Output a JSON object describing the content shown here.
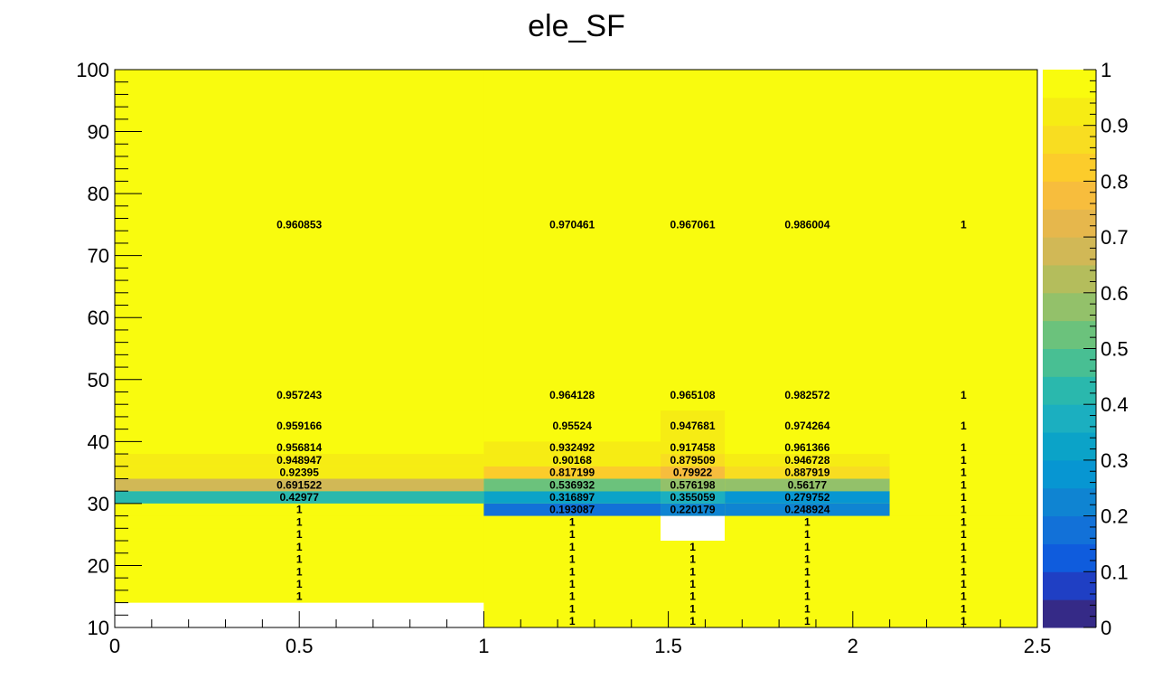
{
  "chart_data": {
    "type": "heatmap",
    "title": "ele_SF",
    "xlabel": "",
    "ylabel": "",
    "xlim": [
      0,
      2.5
    ],
    "ylim": [
      10,
      100
    ],
    "zlim": [
      0,
      1
    ],
    "x_ticks": [
      "0",
      "0.5",
      "1",
      "1.5",
      "2",
      "2.5"
    ],
    "y_ticks": [
      "10",
      "20",
      "30",
      "40",
      "50",
      "60",
      "70",
      "80",
      "90",
      "100"
    ],
    "z_ticks": [
      "0",
      "0.1",
      "0.2",
      "0.3",
      "0.4",
      "0.5",
      "0.6",
      "0.7",
      "0.8",
      "0.9",
      "1"
    ],
    "background_value": 1,
    "x_edges": [
      0,
      1,
      1.479,
      1.653,
      2.1,
      2.5
    ],
    "cells": [
      {
        "ix": 0,
        "y0": 10,
        "y1": 14,
        "value": null,
        "label": ""
      },
      {
        "ix": 0,
        "y0": 14,
        "y1": 16,
        "value": 1,
        "label": "1"
      },
      {
        "ix": 0,
        "y0": 16,
        "y1": 18,
        "value": 1,
        "label": "1"
      },
      {
        "ix": 0,
        "y0": 18,
        "y1": 20,
        "value": 1,
        "label": "1"
      },
      {
        "ix": 0,
        "y0": 20,
        "y1": 22,
        "value": 1,
        "label": "1"
      },
      {
        "ix": 0,
        "y0": 22,
        "y1": 24,
        "value": 1,
        "label": "1"
      },
      {
        "ix": 0,
        "y0": 24,
        "y1": 26,
        "value": 1,
        "label": "1"
      },
      {
        "ix": 0,
        "y0": 26,
        "y1": 28,
        "value": 1,
        "label": "1"
      },
      {
        "ix": 0,
        "y0": 28,
        "y1": 30,
        "value": 1,
        "label": "1"
      },
      {
        "ix": 0,
        "y0": 30,
        "y1": 32,
        "value": 0.42977,
        "label": "0.42977"
      },
      {
        "ix": 0,
        "y0": 32,
        "y1": 34,
        "value": 0.691522,
        "label": "0.691522"
      },
      {
        "ix": 0,
        "y0": 34,
        "y1": 36,
        "value": 0.92395,
        "label": "0.92395"
      },
      {
        "ix": 0,
        "y0": 36,
        "y1": 38,
        "value": 0.948947,
        "label": "0.948947"
      },
      {
        "ix": 0,
        "y0": 38,
        "y1": 40,
        "value": 0.956814,
        "label": "0.956814"
      },
      {
        "ix": 0,
        "y0": 40,
        "y1": 45,
        "value": 0.959166,
        "label": "0.959166"
      },
      {
        "ix": 0,
        "y0": 45,
        "y1": 50,
        "value": 0.957243,
        "label": "0.957243"
      },
      {
        "ix": 0,
        "y0": 50,
        "y1": 100,
        "value": 0.960853,
        "label": "0.960853"
      },
      {
        "ix": 1,
        "y0": 10,
        "y1": 12,
        "value": 1,
        "label": "1"
      },
      {
        "ix": 1,
        "y0": 12,
        "y1": 14,
        "value": 1,
        "label": "1"
      },
      {
        "ix": 1,
        "y0": 14,
        "y1": 16,
        "value": 1,
        "label": "1"
      },
      {
        "ix": 1,
        "y0": 16,
        "y1": 18,
        "value": 1,
        "label": "1"
      },
      {
        "ix": 1,
        "y0": 18,
        "y1": 20,
        "value": 1,
        "label": "1"
      },
      {
        "ix": 1,
        "y0": 20,
        "y1": 22,
        "value": 1,
        "label": "1"
      },
      {
        "ix": 1,
        "y0": 22,
        "y1": 24,
        "value": 1,
        "label": "1"
      },
      {
        "ix": 1,
        "y0": 24,
        "y1": 26,
        "value": 1,
        "label": "1"
      },
      {
        "ix": 1,
        "y0": 26,
        "y1": 28,
        "value": 1,
        "label": "1"
      },
      {
        "ix": 1,
        "y0": 28,
        "y1": 30,
        "value": 0.193087,
        "label": "0.193087"
      },
      {
        "ix": 1,
        "y0": 30,
        "y1": 32,
        "value": 0.316897,
        "label": "0.316897"
      },
      {
        "ix": 1,
        "y0": 32,
        "y1": 34,
        "value": 0.536932,
        "label": "0.536932"
      },
      {
        "ix": 1,
        "y0": 34,
        "y1": 36,
        "value": 0.817199,
        "label": "0.817199"
      },
      {
        "ix": 1,
        "y0": 36,
        "y1": 38,
        "value": 0.90168,
        "label": "0.90168"
      },
      {
        "ix": 1,
        "y0": 38,
        "y1": 40,
        "value": 0.932492,
        "label": "0.932492"
      },
      {
        "ix": 1,
        "y0": 40,
        "y1": 45,
        "value": 0.95524,
        "label": "0.95524"
      },
      {
        "ix": 1,
        "y0": 45,
        "y1": 50,
        "value": 0.964128,
        "label": "0.964128"
      },
      {
        "ix": 1,
        "y0": 50,
        "y1": 100,
        "value": 0.970461,
        "label": "0.970461"
      },
      {
        "ix": 2,
        "y0": 10,
        "y1": 12,
        "value": 1,
        "label": "1"
      },
      {
        "ix": 2,
        "y0": 12,
        "y1": 14,
        "value": 1,
        "label": "1"
      },
      {
        "ix": 2,
        "y0": 14,
        "y1": 16,
        "value": 1,
        "label": "1"
      },
      {
        "ix": 2,
        "y0": 16,
        "y1": 18,
        "value": 1,
        "label": "1"
      },
      {
        "ix": 2,
        "y0": 18,
        "y1": 20,
        "value": 1,
        "label": "1"
      },
      {
        "ix": 2,
        "y0": 20,
        "y1": 22,
        "value": 1,
        "label": "1"
      },
      {
        "ix": 2,
        "y0": 22,
        "y1": 24,
        "value": 1,
        "label": "1"
      },
      {
        "ix": 2,
        "y0": 24,
        "y1": 28,
        "value": null,
        "label": ""
      },
      {
        "ix": 2,
        "y0": 28,
        "y1": 30,
        "value": 0.220179,
        "label": "0.220179"
      },
      {
        "ix": 2,
        "y0": 30,
        "y1": 32,
        "value": 0.355059,
        "label": "0.355059"
      },
      {
        "ix": 2,
        "y0": 32,
        "y1": 34,
        "value": 0.576198,
        "label": "0.576198"
      },
      {
        "ix": 2,
        "y0": 34,
        "y1": 36,
        "value": 0.79922,
        "label": "0.79922"
      },
      {
        "ix": 2,
        "y0": 36,
        "y1": 38,
        "value": 0.879509,
        "label": "0.879509"
      },
      {
        "ix": 2,
        "y0": 38,
        "y1": 40,
        "value": 0.917458,
        "label": "0.917458"
      },
      {
        "ix": 2,
        "y0": 40,
        "y1": 45,
        "value": 0.947681,
        "label": "0.947681"
      },
      {
        "ix": 2,
        "y0": 45,
        "y1": 50,
        "value": 0.965108,
        "label": "0.965108"
      },
      {
        "ix": 2,
        "y0": 50,
        "y1": 100,
        "value": 0.967061,
        "label": "0.967061"
      },
      {
        "ix": 3,
        "y0": 10,
        "y1": 12,
        "value": 1,
        "label": "1"
      },
      {
        "ix": 3,
        "y0": 12,
        "y1": 14,
        "value": 1,
        "label": "1"
      },
      {
        "ix": 3,
        "y0": 14,
        "y1": 16,
        "value": 1,
        "label": "1"
      },
      {
        "ix": 3,
        "y0": 16,
        "y1": 18,
        "value": 1,
        "label": "1"
      },
      {
        "ix": 3,
        "y0": 18,
        "y1": 20,
        "value": 1,
        "label": "1"
      },
      {
        "ix": 3,
        "y0": 20,
        "y1": 22,
        "value": 1,
        "label": "1"
      },
      {
        "ix": 3,
        "y0": 22,
        "y1": 24,
        "value": 1,
        "label": "1"
      },
      {
        "ix": 3,
        "y0": 24,
        "y1": 26,
        "value": 1,
        "label": "1"
      },
      {
        "ix": 3,
        "y0": 26,
        "y1": 28,
        "value": 1,
        "label": "1"
      },
      {
        "ix": 3,
        "y0": 28,
        "y1": 30,
        "value": 0.248924,
        "label": "0.248924"
      },
      {
        "ix": 3,
        "y0": 30,
        "y1": 32,
        "value": 0.279752,
        "label": "0.279752"
      },
      {
        "ix": 3,
        "y0": 32,
        "y1": 34,
        "value": 0.56177,
        "label": "0.56177"
      },
      {
        "ix": 3,
        "y0": 34,
        "y1": 36,
        "value": 0.887919,
        "label": "0.887919"
      },
      {
        "ix": 3,
        "y0": 36,
        "y1": 38,
        "value": 0.946728,
        "label": "0.946728"
      },
      {
        "ix": 3,
        "y0": 38,
        "y1": 40,
        "value": 0.961366,
        "label": "0.961366"
      },
      {
        "ix": 3,
        "y0": 40,
        "y1": 45,
        "value": 0.974264,
        "label": "0.974264"
      },
      {
        "ix": 3,
        "y0": 45,
        "y1": 50,
        "value": 0.982572,
        "label": "0.982572"
      },
      {
        "ix": 3,
        "y0": 50,
        "y1": 100,
        "value": 0.986004,
        "label": "0.986004"
      },
      {
        "ix": 4,
        "y0": 10,
        "y1": 12,
        "value": 1,
        "label": "1"
      },
      {
        "ix": 4,
        "y0": 12,
        "y1": 14,
        "value": 1,
        "label": "1"
      },
      {
        "ix": 4,
        "y0": 14,
        "y1": 16,
        "value": 1,
        "label": "1"
      },
      {
        "ix": 4,
        "y0": 16,
        "y1": 18,
        "value": 1,
        "label": "1"
      },
      {
        "ix": 4,
        "y0": 18,
        "y1": 20,
        "value": 1,
        "label": "1"
      },
      {
        "ix": 4,
        "y0": 20,
        "y1": 22,
        "value": 1,
        "label": "1"
      },
      {
        "ix": 4,
        "y0": 22,
        "y1": 24,
        "value": 1,
        "label": "1"
      },
      {
        "ix": 4,
        "y0": 24,
        "y1": 26,
        "value": 1,
        "label": "1"
      },
      {
        "ix": 4,
        "y0": 26,
        "y1": 28,
        "value": 1,
        "label": "1"
      },
      {
        "ix": 4,
        "y0": 28,
        "y1": 30,
        "value": 1,
        "label": "1"
      },
      {
        "ix": 4,
        "y0": 30,
        "y1": 32,
        "value": 1,
        "label": "1"
      },
      {
        "ix": 4,
        "y0": 32,
        "y1": 34,
        "value": 1,
        "label": "1"
      },
      {
        "ix": 4,
        "y0": 34,
        "y1": 36,
        "value": 1,
        "label": "1"
      },
      {
        "ix": 4,
        "y0": 36,
        "y1": 38,
        "value": 1,
        "label": "1"
      },
      {
        "ix": 4,
        "y0": 38,
        "y1": 40,
        "value": 1,
        "label": "1"
      },
      {
        "ix": 4,
        "y0": 40,
        "y1": 45,
        "value": 1,
        "label": "1"
      },
      {
        "ix": 4,
        "y0": 45,
        "y1": 50,
        "value": 1,
        "label": "1"
      },
      {
        "ix": 4,
        "y0": 50,
        "y1": 100,
        "value": 1,
        "label": "1"
      }
    ],
    "palette": [
      "#352a87",
      "#1f3fc4",
      "#0f5cdd",
      "#1271d8",
      "#0f84d2",
      "#0796d2",
      "#0ba3c8",
      "#1bafc0",
      "#2ab8ad",
      "#48bf93",
      "#6bc27c",
      "#93c16a",
      "#b4bd5c",
      "#d1b856",
      "#e6b74c",
      "#f7bd3d",
      "#fccc2b",
      "#f8dd21",
      "#f6ec14",
      "#f9fb0e"
    ],
    "grid": false,
    "legend": "colorbar-right"
  }
}
